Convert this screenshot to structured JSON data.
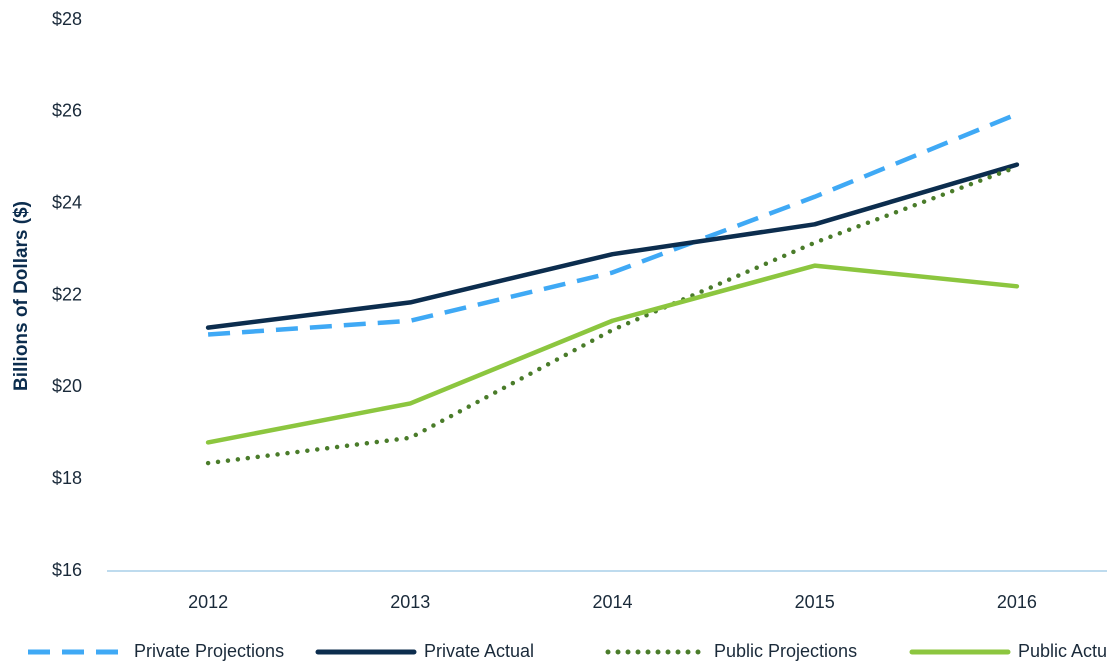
{
  "chart_data": {
    "type": "line",
    "y_label": "Billions of Dollars ($)",
    "categories": [
      "2012",
      "2013",
      "2014",
      "2015",
      "2016"
    ],
    "series": [
      {
        "name": "Private Projections",
        "color": "#3fa9f5",
        "dash": "dashed",
        "values": [
          21.15,
          21.45,
          22.5,
          24.15,
          25.95
        ]
      },
      {
        "name": "Private Actual",
        "color": "#0c2d4e",
        "dash": "solid",
        "values": [
          21.3,
          21.85,
          22.9,
          23.55,
          24.85
        ]
      },
      {
        "name": "Public Projections",
        "color": "#4a7c2a",
        "dash": "dotted",
        "values": [
          18.35,
          18.9,
          21.25,
          23.15,
          24.8
        ]
      },
      {
        "name": "Public Actual",
        "color": "#8cc63f",
        "dash": "solid",
        "values": [
          18.8,
          19.65,
          21.45,
          22.65,
          22.2
        ]
      }
    ],
    "ylim": [
      16,
      28
    ],
    "yticks": [
      {
        "value": 16,
        "label": "$16"
      },
      {
        "value": 18,
        "label": "$18"
      },
      {
        "value": 20,
        "label": "$20"
      },
      {
        "value": 22,
        "label": "$22"
      },
      {
        "value": 24,
        "label": "$24"
      },
      {
        "value": 26,
        "label": "$26"
      },
      {
        "value": 28,
        "label": "$28"
      }
    ],
    "grid": false,
    "legend": "bottom"
  }
}
